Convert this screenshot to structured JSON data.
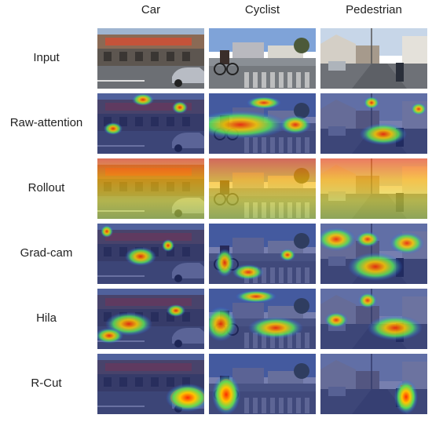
{
  "columns": [
    "Car",
    "Cyclist",
    "Pedestrian"
  ],
  "rows": [
    {
      "label": "Input",
      "type": "input"
    },
    {
      "label": "Raw-attention",
      "type": "raw"
    },
    {
      "label": "Rollout",
      "type": "rollout"
    },
    {
      "label": "Grad-cam",
      "type": "gradcam"
    },
    {
      "label": "Hila",
      "type": "hila"
    },
    {
      "label": "R-Cut",
      "type": "rcut"
    }
  ],
  "scenes": [
    "car",
    "cyclist",
    "pedestrian"
  ]
}
